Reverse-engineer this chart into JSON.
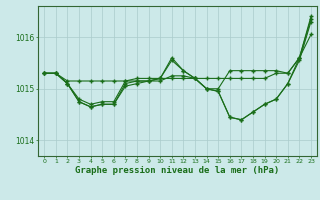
{
  "bg_color": "#cce9e9",
  "grid_color": "#aacccc",
  "line_color": "#1a6e1a",
  "title": "Graphe pression niveau de la mer (hPa)",
  "xlim": [
    -0.5,
    23.5
  ],
  "ylim": [
    1013.7,
    1016.6
  ],
  "yticks": [
    1014,
    1015,
    1016
  ],
  "xticks": [
    0,
    1,
    2,
    3,
    4,
    5,
    6,
    7,
    8,
    9,
    10,
    11,
    12,
    13,
    14,
    15,
    16,
    17,
    18,
    19,
    20,
    21,
    22,
    23
  ],
  "s1_y": [
    1015.3,
    1015.3,
    1015.15,
    1015.15,
    1015.15,
    1015.15,
    1015.15,
    1015.15,
    1015.15,
    1015.15,
    1015.2,
    1015.2,
    1015.2,
    1015.2,
    1015.2,
    1015.2,
    1015.2,
    1015.2,
    1015.2,
    1015.2,
    1015.3,
    1015.3,
    1015.6,
    1016.4
  ],
  "s2_y": [
    1015.3,
    1015.3,
    1015.1,
    1014.8,
    1014.7,
    1014.75,
    1014.75,
    1015.15,
    1015.2,
    1015.2,
    1015.2,
    1015.6,
    1015.35,
    1015.2,
    1015.0,
    1015.0,
    1015.35,
    1015.35,
    1015.35,
    1015.35,
    1015.35,
    1015.3,
    1015.6,
    1016.05
  ],
  "s3_y": [
    1015.3,
    1015.3,
    1015.1,
    1014.75,
    1014.65,
    1014.7,
    1014.7,
    1015.1,
    1015.15,
    1015.15,
    1015.2,
    1015.55,
    1015.35,
    1015.2,
    1015.0,
    1014.95,
    1014.45,
    1014.4,
    1014.55,
    1014.7,
    1014.8,
    1015.1,
    1015.6,
    1016.35
  ],
  "s4_y": [
    1015.3,
    1015.3,
    1015.1,
    1014.75,
    1014.65,
    1014.7,
    1014.7,
    1015.05,
    1015.1,
    1015.15,
    1015.15,
    1015.25,
    1015.25,
    1015.2,
    1015.0,
    1014.95,
    1014.45,
    1014.4,
    1014.55,
    1014.7,
    1014.8,
    1015.1,
    1015.55,
    1016.3
  ]
}
